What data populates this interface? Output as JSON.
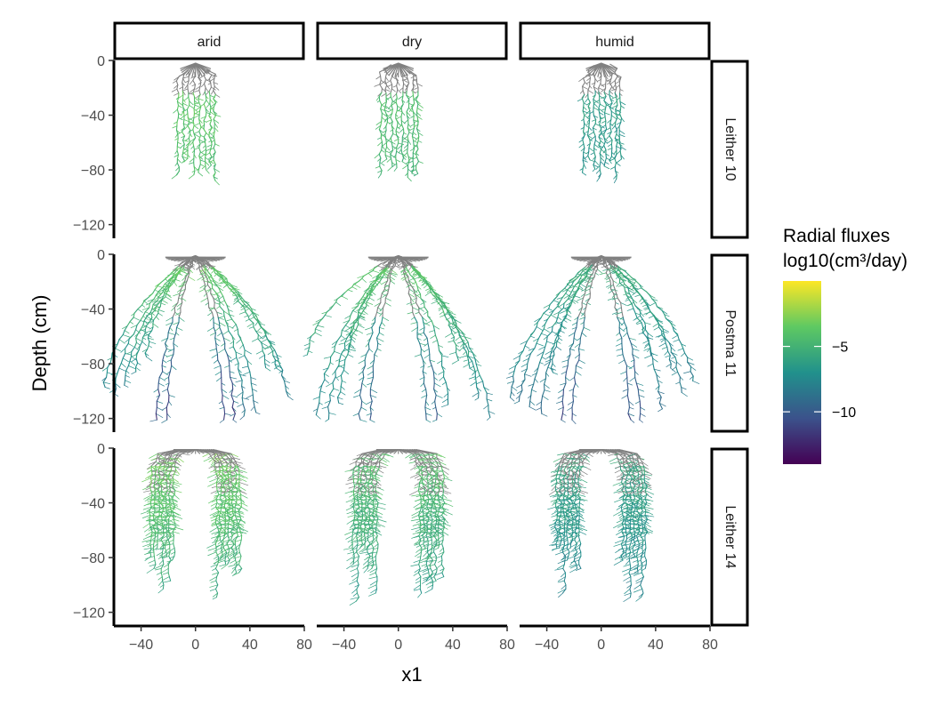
{
  "chart_data": {
    "type": "scatter",
    "facet_columns": [
      "arid",
      "dry",
      "humid"
    ],
    "facet_rows": [
      "Leither 10",
      "Postma 11",
      "Leither 14"
    ],
    "xlabel": "x1",
    "ylabel": "Depth (cm)",
    "xlim": [
      -60,
      80
    ],
    "ylim": [
      -130,
      0
    ],
    "x_ticks": [
      -40,
      0,
      40,
      80
    ],
    "y_ticks": [
      0,
      -40,
      -80,
      -120
    ],
    "legend": {
      "title_line1": "Radial fluxes",
      "title_line2": "log10(cm³/day)",
      "placement": "right",
      "ticks": [
        -5,
        -10
      ],
      "range": [
        -14,
        0
      ],
      "colormap": [
        "#440154",
        "#3b528b",
        "#21918c",
        "#5ec962",
        "#fde725"
      ]
    },
    "unfluxed_color": "#808080",
    "panels": [
      {
        "row": "Leither 10",
        "col": "arid",
        "shape": "compact",
        "half_width": 15,
        "depth": 88,
        "flux_near_base": -3.5,
        "flux_deep": -4.5
      },
      {
        "row": "Leither 10",
        "col": "dry",
        "shape": "compact",
        "half_width": 15,
        "depth": 88,
        "flux_near_base": -4,
        "flux_deep": -5
      },
      {
        "row": "Leither 10",
        "col": "humid",
        "shape": "compact",
        "half_width": 15,
        "depth": 88,
        "flux_near_base": -6,
        "flux_deep": -7
      },
      {
        "row": "Postma 11",
        "col": "arid",
        "shape": "fibrous",
        "half_width": 68,
        "depth": 120,
        "flux_near_base": -3,
        "flux_deep": -9
      },
      {
        "row": "Postma 11",
        "col": "dry",
        "shape": "fibrous",
        "half_width": 68,
        "depth": 120,
        "flux_near_base": -3.5,
        "flux_deep": -8
      },
      {
        "row": "Postma 11",
        "col": "humid",
        "shape": "fibrous",
        "half_width": 68,
        "depth": 120,
        "flux_near_base": -5,
        "flux_deep": -9
      },
      {
        "row": "Leither 14",
        "col": "arid",
        "shape": "arch",
        "half_width": 38,
        "depth": 110,
        "flux_near_base": -3,
        "flux_deep": -6
      },
      {
        "row": "Leither 14",
        "col": "dry",
        "shape": "arch",
        "half_width": 38,
        "depth": 110,
        "flux_near_base": -4,
        "flux_deep": -6.5
      },
      {
        "row": "Leither 14",
        "col": "humid",
        "shape": "arch",
        "half_width": 38,
        "depth": 110,
        "flux_near_base": -5.5,
        "flux_deep": -8
      }
    ]
  }
}
